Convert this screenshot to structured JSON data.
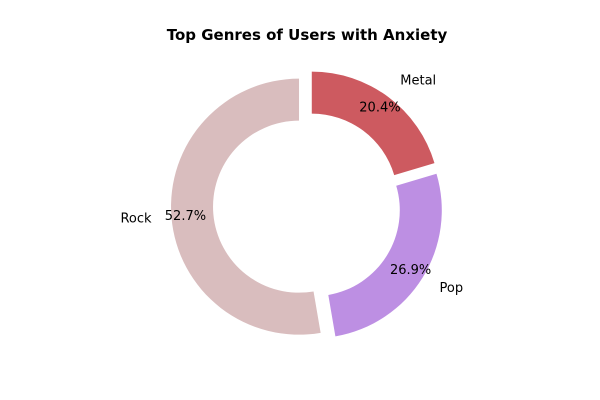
{
  "chart_data": {
    "type": "pie",
    "style": "donut",
    "title": "Top Genres of Users with Anxiety",
    "start_angle_deg": 90,
    "direction": "clockwise",
    "slices": [
      {
        "label": "Metal",
        "value": 20.4,
        "pct_label": "20.4%",
        "color": "#cd5a60",
        "explode": true
      },
      {
        "label": "Pop",
        "value": 26.9,
        "pct_label": "26.9%",
        "color": "#bd8fe3",
        "explode": true
      },
      {
        "label": "Rock",
        "value": 52.7,
        "pct_label": "52.7%",
        "color": "#d9bdbe",
        "explode": true
      }
    ]
  }
}
